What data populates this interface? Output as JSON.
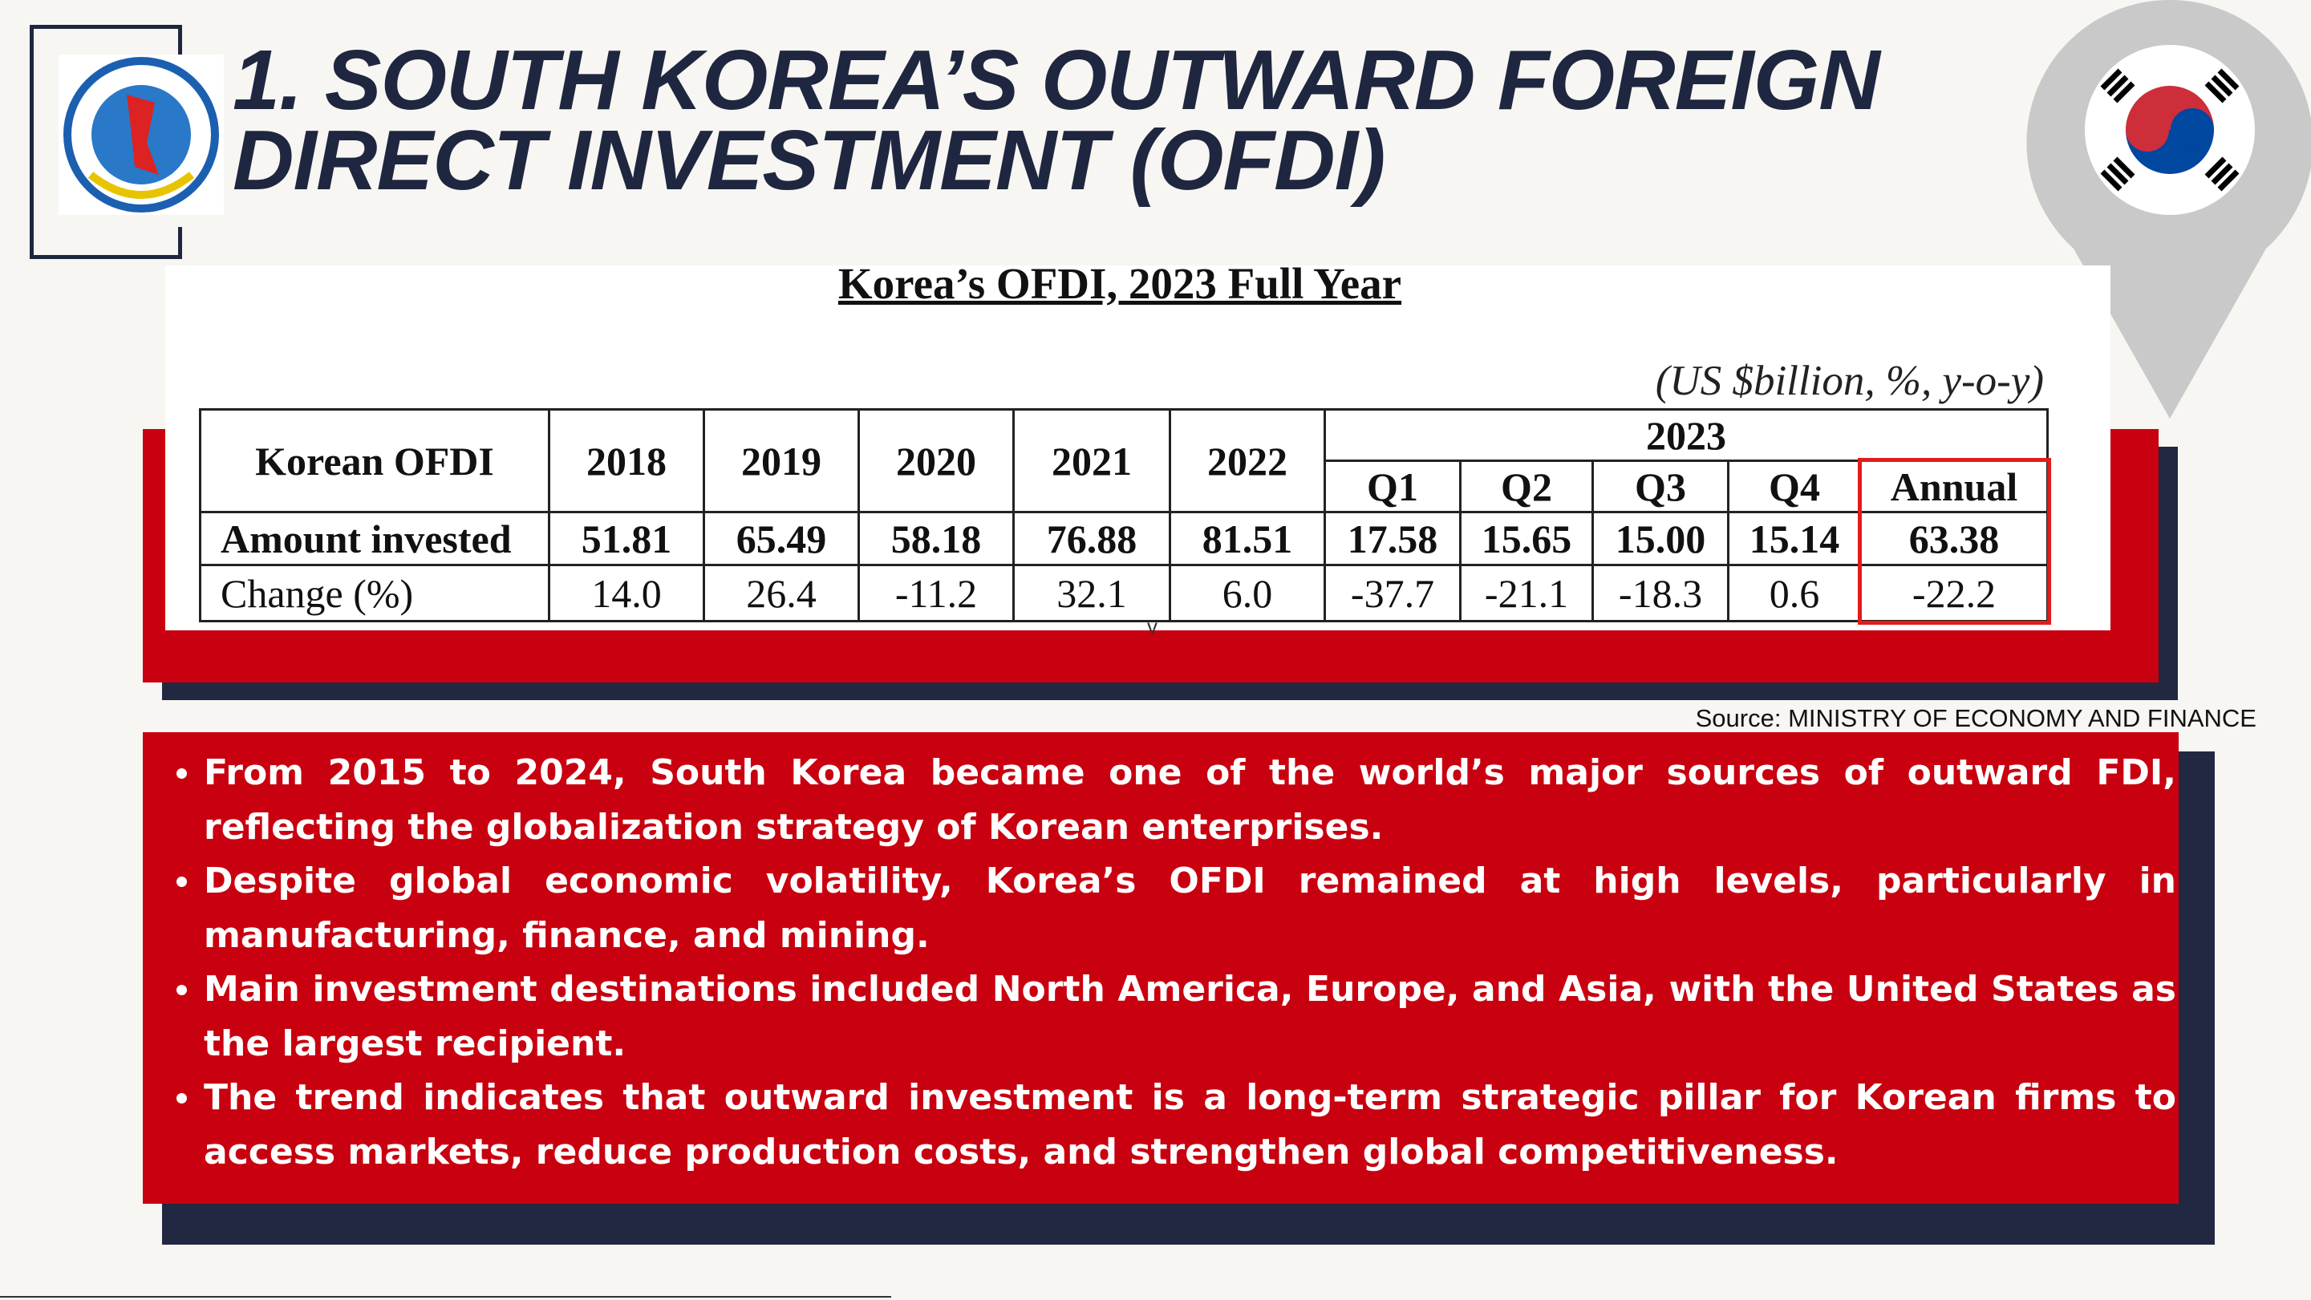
{
  "header": {
    "title": [
      "1. SOUTH KOREA’S OUTWARD FOREIGN",
      "DIRECT INVESTMENT (OFDI)"
    ]
  },
  "table": {
    "title": "Korea’s OFDI, 2023 Full Year",
    "units": "(US $billion, %, y-o-y)",
    "corner": "Korean OFDI",
    "years": [
      "2018",
      "2019",
      "2020",
      "2021",
      "2022"
    ],
    "group": "2023",
    "quarters": [
      "Q1",
      "Q2",
      "Q3",
      "Q4",
      "Annual"
    ],
    "rows": [
      [
        "Amount invested",
        "51.81",
        "65.49",
        "58.18",
        "76.88",
        "81.51",
        "17.58",
        "15.65",
        "15.00",
        "15.14",
        "63.38"
      ],
      [
        "Change (%)",
        "14.0",
        "26.4",
        "-11.2",
        "32.1",
        "6.0",
        "-37.7",
        "-21.1",
        "-18.3",
        "0.6",
        "-22.2"
      ]
    ],
    "stray": "v"
  },
  "source": "Source: MINISTRY OF ECONOMY AND FINANCE",
  "bullets": [
    "From 2015 to 2024, South Korea became one of the world’s major sources of outward FDI, reflecting the globalization strategy of Korean enterprises.",
    "Despite global economic volatility, Korea’s OFDI remained at high levels, particularly in manufacturing, finance, and mining.",
    "Main investment destinations included North America, Europe, and Asia, with the United States as the largest recipient.",
    "The trend indicates that outward investment is a long-term strategic pillar for Korean firms to access markets, reduce production costs, and strengthen global competitiveness."
  ]
}
